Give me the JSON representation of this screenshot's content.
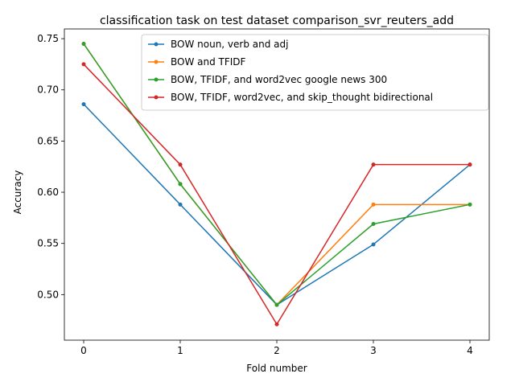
{
  "chart_data": {
    "type": "line",
    "title": "classification task on test dataset comparison_svr_reuters_add",
    "xlabel": "Fold number",
    "ylabel": "Accuracy",
    "x": [
      0,
      1,
      2,
      3,
      4
    ],
    "xticks": [
      "0",
      "1",
      "2",
      "3",
      "4"
    ],
    "xlim": [
      -0.2,
      4.2
    ],
    "ylim": [
      0.4555,
      0.7595
    ],
    "yticks": [
      "0.50",
      "0.55",
      "0.60",
      "0.65",
      "0.70",
      "0.75"
    ],
    "grid": false,
    "legend_position": "upper-right",
    "series": [
      {
        "name": "BOW noun, verb and adj",
        "color": "#1f77b4",
        "values": [
          0.686,
          0.588,
          0.49,
          0.549,
          0.627
        ]
      },
      {
        "name": "BOW and TFIDF",
        "color": "#ff7f0e",
        "values": [
          0.745,
          0.608,
          0.49,
          0.588,
          0.588
        ]
      },
      {
        "name": "BOW, TFIDF, and word2vec google news 300",
        "color": "#2ca02c",
        "values": [
          0.745,
          0.608,
          0.49,
          0.569,
          0.588
        ]
      },
      {
        "name": "BOW, TFIDF, word2vec, and skip_thought bidirectional",
        "color": "#d62728",
        "values": [
          0.725,
          0.627,
          0.471,
          0.627,
          0.627
        ]
      }
    ]
  }
}
